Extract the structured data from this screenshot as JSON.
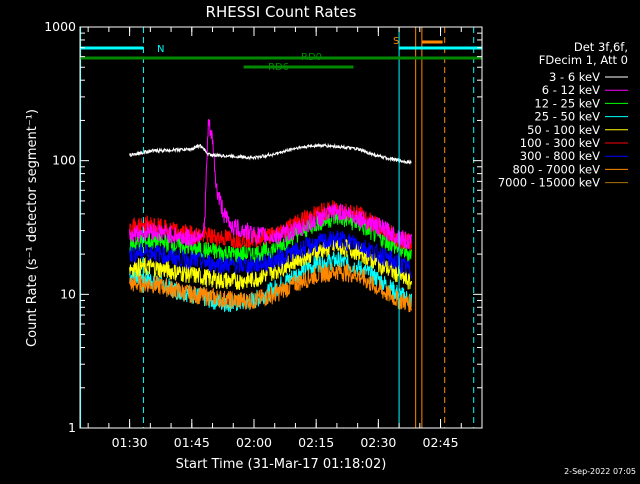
{
  "chart_data": {
    "type": "line",
    "title": "RHESSI Count Rates",
    "xlabel": "Start Time (31-Mar-17 01:18:02)",
    "ylabel": "Count Rate (s⁻¹ detector segment⁻¹)",
    "y_scale": "log",
    "ylim": [
      1,
      1000
    ],
    "xlim": [
      "01:18:02",
      "02:55:00"
    ],
    "x_ticks": [
      "01:30",
      "01:45",
      "02:00",
      "02:15",
      "02:30",
      "02:45"
    ],
    "y_ticks": [
      "1",
      "10",
      "100",
      "1000"
    ],
    "grid": false,
    "legend_header": [
      "Det 3f,6f,",
      "FDecim 1, Att 0"
    ],
    "legend_placement": "right",
    "series": [
      {
        "name": "3 - 6 keV",
        "color": "#ffffff",
        "x": [
          "01:30",
          "01:35",
          "01:40",
          "01:45",
          "01:47",
          "01:49",
          "01:50",
          "01:55",
          "02:00",
          "02:05",
          "02:10",
          "02:15",
          "02:20",
          "02:25",
          "02:30",
          "02:35",
          "02:38"
        ],
        "values": [
          110,
          118,
          120,
          122,
          130,
          112,
          110,
          108,
          105,
          112,
          124,
          130,
          128,
          122,
          108,
          100,
          97
        ]
      },
      {
        "name": "6 - 12 keV",
        "color": "#ff00ff",
        "x": [
          "01:30",
          "01:35",
          "01:40",
          "01:45",
          "01:48",
          "01:49",
          "01:50",
          "01:51",
          "01:53",
          "01:55",
          "02:00",
          "02:05",
          "02:10",
          "02:15",
          "02:20",
          "02:25",
          "02:30",
          "02:35",
          "02:38"
        ],
        "values": [
          28,
          30,
          28,
          26,
          30,
          190,
          140,
          60,
          38,
          32,
          28,
          27,
          30,
          36,
          42,
          38,
          32,
          27,
          24
        ]
      },
      {
        "name": "12 - 25 keV",
        "color": "#00ff00",
        "x": [
          "01:30",
          "01:35",
          "01:40",
          "01:45",
          "01:50",
          "01:55",
          "02:00",
          "02:05",
          "02:10",
          "02:15",
          "02:20",
          "02:25",
          "02:30",
          "02:35",
          "02:38"
        ],
        "values": [
          24,
          25,
          24,
          22,
          21,
          20,
          20,
          22,
          28,
          34,
          38,
          34,
          27,
          22,
          20
        ]
      },
      {
        "name": "25 - 50 keV",
        "color": "#00ffff",
        "x": [
          "01:30",
          "01:35",
          "01:40",
          "01:45",
          "01:50",
          "01:55",
          "02:00",
          "02:05",
          "02:10",
          "02:15",
          "02:20",
          "02:25",
          "02:30",
          "02:35",
          "02:38"
        ],
        "values": [
          14,
          13,
          11,
          10,
          9,
          8.5,
          9,
          11,
          14,
          17,
          18,
          16,
          13,
          10,
          9
        ]
      },
      {
        "name": "50 - 100 keV",
        "color": "#ffff00",
        "x": [
          "01:30",
          "01:35",
          "01:40",
          "01:45",
          "01:50",
          "01:55",
          "02:00",
          "02:05",
          "02:10",
          "02:15",
          "02:20",
          "02:25",
          "02:30",
          "02:35",
          "02:38"
        ],
        "values": [
          16,
          16,
          15,
          14,
          13,
          12.5,
          13,
          15,
          18,
          21,
          23,
          21,
          17,
          14,
          12
        ]
      },
      {
        "name": "100 - 300 keV",
        "color": "#ff0000",
        "x": [
          "01:30",
          "01:35",
          "01:40",
          "01:45",
          "01:50",
          "01:55",
          "02:00",
          "02:05",
          "02:10",
          "02:15",
          "02:20",
          "02:25",
          "02:30",
          "02:35",
          "02:38"
        ],
        "values": [
          32,
          33,
          30,
          28,
          27,
          26,
          26,
          28,
          34,
          40,
          44,
          40,
          32,
          26,
          24
        ]
      },
      {
        "name": "300 - 800 keV",
        "color": "#0000ff",
        "x": [
          "01:30",
          "01:35",
          "01:40",
          "01:45",
          "01:50",
          "01:55",
          "02:00",
          "02:05",
          "02:10",
          "02:15",
          "02:20",
          "02:25",
          "02:30",
          "02:35",
          "02:38"
        ],
        "values": [
          20,
          21,
          19,
          18,
          17,
          16.5,
          16.5,
          18,
          21,
          24,
          26,
          24,
          20,
          17,
          15
        ]
      },
      {
        "name": "800 - 7000 keV",
        "color": "#ff8800",
        "x": [
          "01:30",
          "01:35",
          "01:40",
          "01:45",
          "01:50",
          "01:55",
          "02:00",
          "02:05",
          "02:10",
          "02:15",
          "02:20",
          "02:25",
          "02:30",
          "02:35",
          "02:38"
        ],
        "values": [
          12,
          12,
          11,
          10,
          9.5,
          9,
          9,
          10,
          12,
          14,
          15,
          14,
          11,
          9,
          8.5
        ]
      },
      {
        "name": "7000 - 15000 keV",
        "color": "#b07000",
        "x": [],
        "values": []
      }
    ],
    "annotations": {
      "attenuator_bars": [
        {
          "label": "N",
          "color": "#00ffff",
          "state": "night",
          "start": "01:18:02",
          "end": "01:33:20"
        },
        {
          "label": "N",
          "color": "#00ffff",
          "state": "night",
          "start": "02:35:00",
          "end": "02:55:00"
        },
        {
          "label": "RD0",
          "color": "#008800",
          "start": "01:18:02",
          "end": "02:24:00"
        },
        {
          "label": "RD6",
          "color": "#008800",
          "start": "01:57:30",
          "end": "02:24:00"
        },
        {
          "label": "RD0",
          "color": "#008800",
          "start": "02:24:00",
          "end": "02:55:00"
        },
        {
          "label": "S",
          "color": "#ff8800",
          "start": "02:40:30",
          "end": "02:45:30"
        }
      ],
      "vertical_lines": [
        {
          "time": "01:18:10",
          "color": "#00ffff",
          "style": "solid"
        },
        {
          "time": "01:33:20",
          "color": "#00ffff",
          "style": "dashed"
        },
        {
          "time": "02:35:00",
          "color": "#00ffff",
          "style": "solid"
        },
        {
          "time": "02:39:00",
          "color": "#ff8800",
          "style": "solid"
        },
        {
          "time": "02:40:30",
          "color": "#ff8800",
          "style": "solid"
        },
        {
          "time": "02:46:00",
          "color": "#ff8800",
          "style": "dashed"
        },
        {
          "time": "02:53:00",
          "color": "#00ffff",
          "style": "dashed"
        }
      ]
    },
    "plot_date": "2-Sep-2022 07:05"
  }
}
